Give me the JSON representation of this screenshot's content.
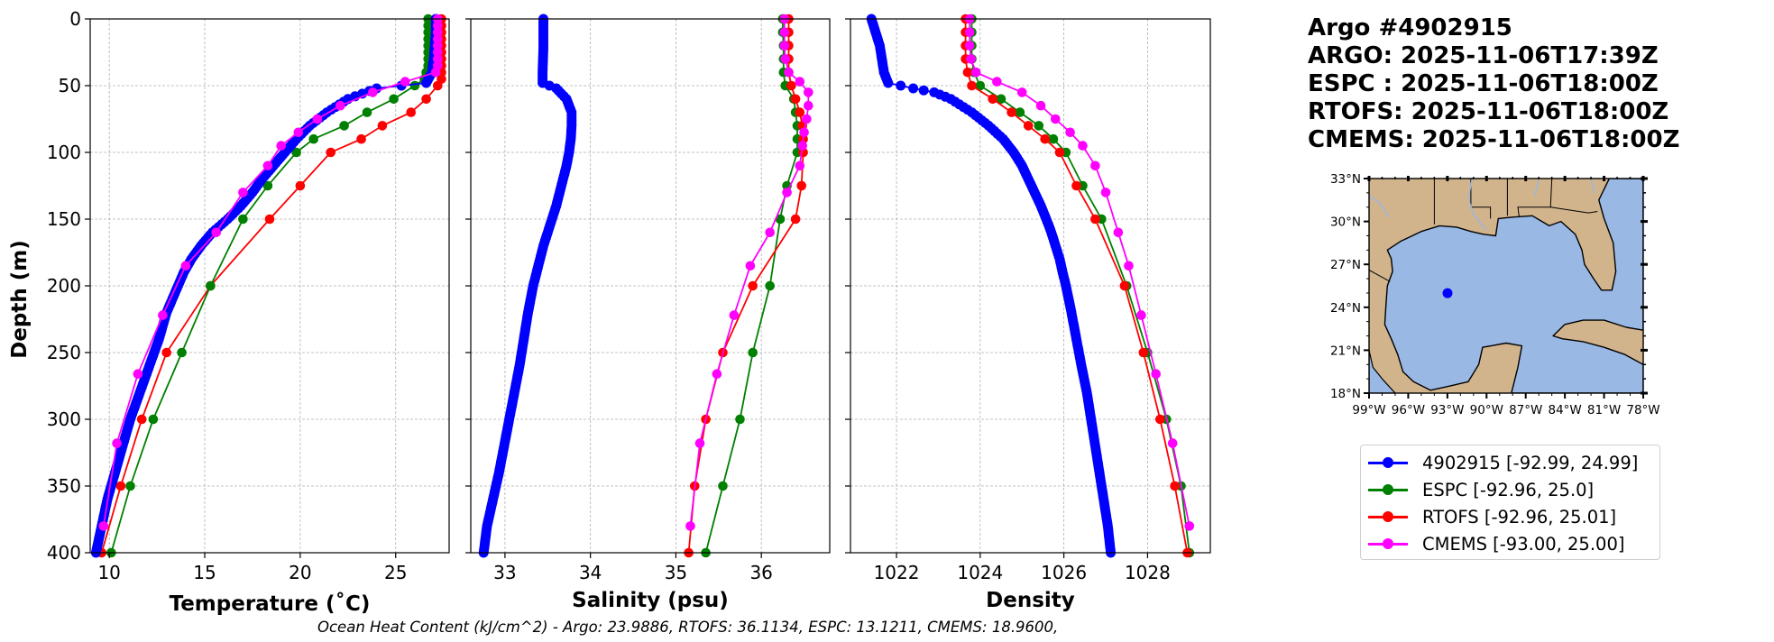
{
  "header": {
    "title": "Argo #4902915",
    "lines": [
      "ARGO: 2025-11-06T17:39Z",
      "ESPC : 2025-11-06T18:00Z",
      "RTOFS: 2025-11-06T18:00Z",
      "CMEMS: 2025-11-06T18:00Z"
    ]
  },
  "colors": {
    "argo": "#0000ff",
    "espc": "#008000",
    "rtofs": "#ff0000",
    "cmems": "#ff00ff",
    "land": "#d2b48c",
    "water": "#99b8e4"
  },
  "legend": [
    {
      "label": "4902915 [-92.99, 24.99]",
      "color": "#0000ff"
    },
    {
      "label": "ESPC [-92.96, 25.0]",
      "color": "#008000"
    },
    {
      "label": "RTOFS [-92.96, 25.01]",
      "color": "#ff0000"
    },
    {
      "label": "CMEMS [-93.00, 25.00]",
      "color": "#ff00ff"
    }
  ],
  "footer": "Ocean Heat Content (kJ/cm^2) - Argo: 23.9886,  RTOFS: 36.1134,  ESPC: 13.1211,  CMEMS: 18.9600,",
  "chart_data": [
    {
      "type": "line",
      "title": "",
      "xlabel": "Temperature (˚C)",
      "ylabel": "Depth (m)",
      "xlim": [
        9,
        27.8
      ],
      "ylim": [
        400,
        0
      ],
      "xticks": [
        10,
        15,
        20,
        25
      ],
      "yticks": [
        0,
        50,
        100,
        150,
        200,
        250,
        300,
        350,
        400
      ],
      "grid": true,
      "series": [
        {
          "name": "4902915",
          "key": "argo",
          "dense": true,
          "depth": [
            0,
            10,
            20,
            30,
            40,
            48,
            52,
            60,
            70,
            80,
            90,
            100,
            110,
            120,
            130,
            140,
            150,
            160,
            170,
            180,
            190,
            200,
            220,
            240,
            260,
            280,
            300,
            320,
            340,
            360,
            380,
            400
          ],
          "values": [
            27.1,
            27.1,
            27.05,
            27.0,
            26.9,
            26.6,
            24.0,
            22.5,
            21.4,
            20.5,
            19.8,
            19.2,
            18.6,
            18.0,
            17.5,
            16.9,
            16.2,
            15.4,
            14.8,
            14.3,
            13.9,
            13.6,
            13.0,
            12.6,
            12.1,
            11.6,
            11.1,
            10.7,
            10.3,
            9.9,
            9.6,
            9.3
          ]
        },
        {
          "name": "ESPC",
          "key": "espc",
          "depth": [
            0,
            5,
            10,
            15,
            20,
            25,
            30,
            35,
            40,
            45,
            50,
            60,
            70,
            80,
            90,
            100,
            125,
            150,
            200,
            250,
            300,
            350,
            400
          ],
          "values": [
            26.7,
            26.7,
            26.7,
            26.7,
            26.7,
            26.7,
            26.7,
            26.7,
            26.6,
            26.5,
            26.0,
            24.9,
            23.5,
            22.3,
            20.7,
            19.8,
            18.3,
            17.0,
            15.3,
            13.8,
            12.3,
            11.1,
            10.1
          ]
        },
        {
          "name": "RTOFS",
          "key": "rtofs",
          "depth": [
            0,
            5,
            10,
            15,
            20,
            25,
            30,
            35,
            40,
            45,
            50,
            60,
            70,
            80,
            90,
            100,
            125,
            150,
            200,
            250,
            300,
            350,
            400
          ],
          "values": [
            27.4,
            27.4,
            27.4,
            27.4,
            27.4,
            27.4,
            27.4,
            27.4,
            27.4,
            27.4,
            27.2,
            26.6,
            25.8,
            24.3,
            23.2,
            21.6,
            20.0,
            18.4,
            15.3,
            13.0,
            11.7,
            10.6,
            9.6
          ]
        },
        {
          "name": "CMEMS",
          "key": "cmems",
          "depth": [
            0,
            5,
            10,
            15,
            20,
            25,
            30,
            35,
            40,
            47,
            55,
            65,
            75,
            85,
            95,
            110,
            130,
            160,
            185,
            222,
            266,
            318,
            380
          ],
          "values": [
            27.2,
            27.2,
            27.2,
            27.2,
            27.2,
            27.2,
            27.2,
            27.2,
            27.1,
            25.5,
            23.8,
            22.1,
            20.9,
            19.9,
            19.0,
            18.3,
            17.0,
            15.6,
            14.0,
            12.8,
            11.5,
            10.4,
            9.7
          ]
        }
      ]
    },
    {
      "type": "line",
      "title": "",
      "xlabel": "Salinity (psu)",
      "ylabel": "",
      "xlim": [
        32.6,
        36.8
      ],
      "ylim": [
        400,
        0
      ],
      "xticks": [
        33,
        34,
        35,
        36
      ],
      "yticks": [
        0,
        50,
        100,
        150,
        200,
        250,
        300,
        350,
        400
      ],
      "grid": true,
      "series": [
        {
          "name": "4902915",
          "key": "argo",
          "dense": true,
          "depth": [
            0,
            20,
            40,
            48,
            52,
            60,
            70,
            80,
            90,
            100,
            110,
            120,
            130,
            140,
            150,
            160,
            170,
            180,
            190,
            200,
            220,
            240,
            260,
            280,
            300,
            320,
            340,
            360,
            380,
            400
          ],
          "values": [
            33.45,
            33.45,
            33.44,
            33.44,
            33.6,
            33.72,
            33.78,
            33.78,
            33.77,
            33.75,
            33.72,
            33.68,
            33.64,
            33.6,
            33.55,
            33.5,
            33.45,
            33.41,
            33.37,
            33.33,
            33.27,
            33.22,
            33.17,
            33.11,
            33.05,
            32.99,
            32.93,
            32.86,
            32.79,
            32.75
          ]
        },
        {
          "name": "ESPC",
          "key": "espc",
          "depth": [
            0,
            10,
            20,
            30,
            40,
            50,
            60,
            70,
            80,
            90,
            100,
            125,
            150,
            200,
            250,
            300,
            350,
            400
          ],
          "values": [
            36.25,
            36.25,
            36.26,
            36.26,
            36.26,
            36.28,
            36.38,
            36.4,
            36.42,
            36.42,
            36.42,
            36.3,
            36.22,
            36.1,
            35.9,
            35.75,
            35.55,
            35.35
          ]
        },
        {
          "name": "RTOFS",
          "key": "rtofs",
          "depth": [
            0,
            10,
            20,
            30,
            40,
            50,
            60,
            70,
            80,
            90,
            100,
            125,
            150,
            200,
            250,
            300,
            350,
            400
          ],
          "values": [
            36.32,
            36.32,
            36.32,
            36.32,
            36.32,
            36.35,
            36.4,
            36.45,
            36.48,
            36.49,
            36.49,
            36.47,
            36.4,
            35.9,
            35.55,
            35.35,
            35.22,
            35.15
          ]
        },
        {
          "name": "CMEMS",
          "key": "cmems",
          "depth": [
            0,
            10,
            20,
            30,
            40,
            47,
            55,
            65,
            75,
            85,
            95,
            110,
            130,
            160,
            185,
            222,
            266,
            318,
            380
          ],
          "values": [
            36.27,
            36.27,
            36.27,
            36.28,
            36.32,
            36.45,
            36.55,
            36.55,
            36.53,
            36.5,
            36.48,
            36.45,
            36.3,
            36.1,
            35.87,
            35.68,
            35.48,
            35.28,
            35.17
          ]
        }
      ]
    },
    {
      "type": "line",
      "title": "",
      "xlabel": "Density",
      "ylabel": "",
      "xlim": [
        1020.9,
        1029.5
      ],
      "ylim": [
        400,
        0
      ],
      "xticks": [
        1022,
        1024,
        1026,
        1028
      ],
      "yticks": [
        0,
        50,
        100,
        150,
        200,
        250,
        300,
        350,
        400
      ],
      "grid": true,
      "series": [
        {
          "name": "4902915",
          "key": "argo",
          "dense": true,
          "depth": [
            0,
            10,
            20,
            30,
            40,
            48,
            52,
            55,
            60,
            70,
            80,
            90,
            100,
            110,
            120,
            130,
            140,
            150,
            160,
            170,
            180,
            190,
            200,
            220,
            240,
            260,
            280,
            300,
            320,
            340,
            360,
            380,
            400
          ],
          "values": [
            1021.4,
            1021.5,
            1021.6,
            1021.65,
            1021.7,
            1021.8,
            1022.4,
            1022.9,
            1023.3,
            1023.8,
            1024.2,
            1024.55,
            1024.8,
            1025.0,
            1025.15,
            1025.3,
            1025.45,
            1025.58,
            1025.7,
            1025.8,
            1025.9,
            1025.97,
            1026.05,
            1026.18,
            1026.3,
            1026.42,
            1026.55,
            1026.65,
            1026.75,
            1026.85,
            1026.95,
            1027.05,
            1027.12
          ]
        },
        {
          "name": "ESPC",
          "key": "espc",
          "depth": [
            0,
            10,
            20,
            30,
            40,
            50,
            60,
            70,
            80,
            90,
            100,
            125,
            150,
            200,
            250,
            300,
            350,
            400
          ],
          "values": [
            1023.8,
            1023.8,
            1023.8,
            1023.8,
            1023.85,
            1024.0,
            1024.5,
            1024.95,
            1025.4,
            1025.75,
            1026.05,
            1026.45,
            1026.9,
            1027.5,
            1028.0,
            1028.45,
            1028.8,
            1029.0
          ]
        },
        {
          "name": "RTOFS",
          "key": "rtofs",
          "depth": [
            0,
            10,
            20,
            30,
            40,
            50,
            60,
            70,
            80,
            90,
            100,
            125,
            150,
            200,
            250,
            300,
            350,
            400
          ],
          "values": [
            1023.65,
            1023.65,
            1023.65,
            1023.65,
            1023.7,
            1023.8,
            1024.3,
            1024.75,
            1025.15,
            1025.55,
            1025.9,
            1026.3,
            1026.75,
            1027.45,
            1027.9,
            1028.3,
            1028.65,
            1028.95
          ]
        },
        {
          "name": "CMEMS",
          "key": "cmems",
          "depth": [
            0,
            10,
            20,
            30,
            40,
            47,
            55,
            65,
            75,
            85,
            95,
            110,
            130,
            160,
            185,
            222,
            266,
            318,
            380
          ],
          "values": [
            1023.75,
            1023.75,
            1023.75,
            1023.78,
            1023.9,
            1024.4,
            1025.0,
            1025.45,
            1025.8,
            1026.15,
            1026.45,
            1026.75,
            1027.0,
            1027.3,
            1027.55,
            1027.85,
            1028.2,
            1028.6,
            1029.0
          ]
        }
      ]
    },
    {
      "type": "map",
      "lon_ticks": [
        "99°W",
        "96°W",
        "93°W",
        "90°W",
        "87°W",
        "84°W",
        "81°W",
        "78°W"
      ],
      "lat_ticks": [
        "33°N",
        "30°N",
        "27°N",
        "24°N",
        "21°N",
        "18°N"
      ],
      "lon_range": [
        -99,
        -78
      ],
      "lat_range": [
        18,
        33
      ],
      "marker": {
        "lon": -92.99,
        "lat": 24.99
      }
    }
  ]
}
